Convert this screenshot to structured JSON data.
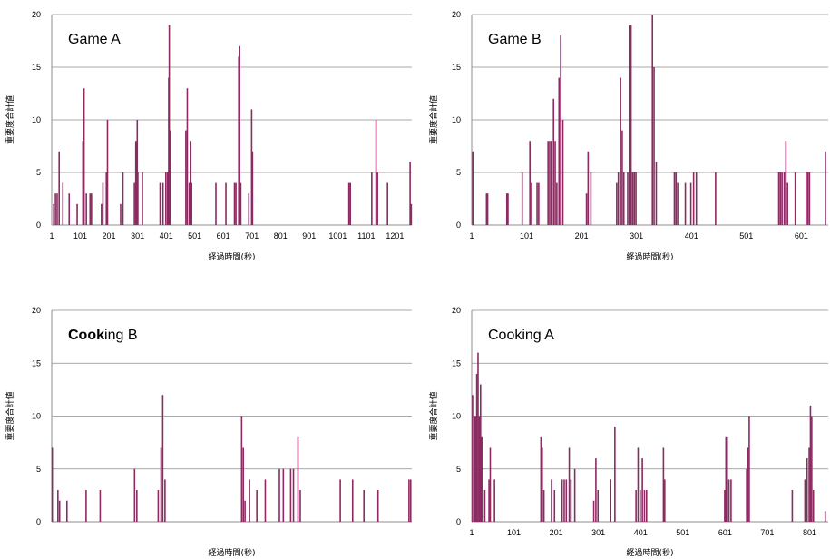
{
  "chart_data": [
    {
      "type": "bar",
      "title": "Game A",
      "xlabel": "経過時間(秒)",
      "ylabel": "重要度合計値",
      "xlim": [
        1,
        1260
      ],
      "ylim": [
        0,
        20
      ],
      "yticks": [
        "0",
        "5",
        "10",
        "15",
        "20"
      ],
      "xticks": [
        {
          "value": 1,
          "label": "1"
        },
        {
          "value": 101,
          "label": "101"
        },
        {
          "value": 201,
          "label": "201"
        },
        {
          "value": 301,
          "label": "301"
        },
        {
          "value": 401,
          "label": "401"
        },
        {
          "value": 501,
          "label": "501"
        },
        {
          "value": 601,
          "label": "601"
        },
        {
          "value": 701,
          "label": "701"
        },
        {
          "value": 801,
          "label": "801"
        },
        {
          "value": 901,
          "label": "901"
        },
        {
          "value": 1001,
          "label": "1001"
        },
        {
          "value": 1101,
          "label": "1101"
        },
        {
          "value": 1201,
          "label": "1201"
        }
      ],
      "grid": true,
      "color": "#8b2b62",
      "bars": [
        {
          "x": 8,
          "y": 2
        },
        {
          "x": 14,
          "y": 3
        },
        {
          "x": 20,
          "y": 3
        },
        {
          "x": 27,
          "y": 7
        },
        {
          "x": 40,
          "y": 4
        },
        {
          "x": 62,
          "y": 3
        },
        {
          "x": 90,
          "y": 2
        },
        {
          "x": 110,
          "y": 8
        },
        {
          "x": 114,
          "y": 13
        },
        {
          "x": 122,
          "y": 3
        },
        {
          "x": 135,
          "y": 3
        },
        {
          "x": 140,
          "y": 3
        },
        {
          "x": 175,
          "y": 2
        },
        {
          "x": 180,
          "y": 4
        },
        {
          "x": 192,
          "y": 5
        },
        {
          "x": 196,
          "y": 10
        },
        {
          "x": 242,
          "y": 2
        },
        {
          "x": 250,
          "y": 5
        },
        {
          "x": 290,
          "y": 4
        },
        {
          "x": 295,
          "y": 8
        },
        {
          "x": 300,
          "y": 10
        },
        {
          "x": 302,
          "y": 5
        },
        {
          "x": 318,
          "y": 5
        },
        {
          "x": 380,
          "y": 4
        },
        {
          "x": 390,
          "y": 4
        },
        {
          "x": 400,
          "y": 5
        },
        {
          "x": 406,
          "y": 5
        },
        {
          "x": 410,
          "y": 14
        },
        {
          "x": 412,
          "y": 19
        },
        {
          "x": 415,
          "y": 9
        },
        {
          "x": 470,
          "y": 9
        },
        {
          "x": 475,
          "y": 13
        },
        {
          "x": 482,
          "y": 4
        },
        {
          "x": 487,
          "y": 8
        },
        {
          "x": 490,
          "y": 4
        },
        {
          "x": 575,
          "y": 4
        },
        {
          "x": 610,
          "y": 4
        },
        {
          "x": 640,
          "y": 4
        },
        {
          "x": 645,
          "y": 4
        },
        {
          "x": 655,
          "y": 16
        },
        {
          "x": 658,
          "y": 17
        },
        {
          "x": 662,
          "y": 4
        },
        {
          "x": 690,
          "y": 3
        },
        {
          "x": 700,
          "y": 11
        },
        {
          "x": 703,
          "y": 7
        },
        {
          "x": 1040,
          "y": 4
        },
        {
          "x": 1045,
          "y": 4
        },
        {
          "x": 1120,
          "y": 5
        },
        {
          "x": 1135,
          "y": 10
        },
        {
          "x": 1140,
          "y": 5
        },
        {
          "x": 1175,
          "y": 4
        },
        {
          "x": 1254,
          "y": 6
        },
        {
          "x": 1258,
          "y": 2
        }
      ]
    },
    {
      "type": "bar",
      "title": "Game B",
      "xlabel": "経過時間(秒)",
      "ylabel": "重要度合計値",
      "xlim": [
        1,
        650
      ],
      "ylim": [
        0,
        20
      ],
      "yticks": [
        "0",
        "5",
        "10",
        "15",
        "20"
      ],
      "xticks": [
        {
          "value": 1,
          "label": "1"
        },
        {
          "value": 101,
          "label": "101"
        },
        {
          "value": 201,
          "label": "201"
        },
        {
          "value": 301,
          "label": "301"
        },
        {
          "value": 401,
          "label": "401"
        },
        {
          "value": 501,
          "label": "501"
        },
        {
          "value": 601,
          "label": "601"
        }
      ],
      "grid": true,
      "color": "#8b2b62",
      "bars": [
        {
          "x": 3,
          "y": 7
        },
        {
          "x": 28,
          "y": 3
        },
        {
          "x": 30,
          "y": 3
        },
        {
          "x": 65,
          "y": 3
        },
        {
          "x": 67,
          "y": 3
        },
        {
          "x": 93,
          "y": 5
        },
        {
          "x": 107,
          "y": 8
        },
        {
          "x": 110,
          "y": 4
        },
        {
          "x": 120,
          "y": 4
        },
        {
          "x": 123,
          "y": 4
        },
        {
          "x": 140,
          "y": 8
        },
        {
          "x": 143,
          "y": 8
        },
        {
          "x": 146,
          "y": 8
        },
        {
          "x": 150,
          "y": 12
        },
        {
          "x": 153,
          "y": 8
        },
        {
          "x": 156,
          "y": 4
        },
        {
          "x": 160,
          "y": 14
        },
        {
          "x": 163,
          "y": 18
        },
        {
          "x": 167,
          "y": 10
        },
        {
          "x": 210,
          "y": 3
        },
        {
          "x": 213,
          "y": 7
        },
        {
          "x": 218,
          "y": 5
        },
        {
          "x": 265,
          "y": 4
        },
        {
          "x": 268,
          "y": 5
        },
        {
          "x": 272,
          "y": 14
        },
        {
          "x": 275,
          "y": 9
        },
        {
          "x": 278,
          "y": 5
        },
        {
          "x": 285,
          "y": 5
        },
        {
          "x": 288,
          "y": 19
        },
        {
          "x": 291,
          "y": 19
        },
        {
          "x": 294,
          "y": 5
        },
        {
          "x": 297,
          "y": 5
        },
        {
          "x": 300,
          "y": 5
        },
        {
          "x": 330,
          "y": 20
        },
        {
          "x": 333,
          "y": 15
        },
        {
          "x": 337,
          "y": 6
        },
        {
          "x": 370,
          "y": 5
        },
        {
          "x": 373,
          "y": 5
        },
        {
          "x": 376,
          "y": 4
        },
        {
          "x": 390,
          "y": 4
        },
        {
          "x": 400,
          "y": 4
        },
        {
          "x": 405,
          "y": 5
        },
        {
          "x": 410,
          "y": 5
        },
        {
          "x": 445,
          "y": 5
        },
        {
          "x": 560,
          "y": 5
        },
        {
          "x": 563,
          "y": 5
        },
        {
          "x": 566,
          "y": 5
        },
        {
          "x": 570,
          "y": 5
        },
        {
          "x": 573,
          "y": 8
        },
        {
          "x": 576,
          "y": 4
        },
        {
          "x": 590,
          "y": 5
        },
        {
          "x": 610,
          "y": 5
        },
        {
          "x": 613,
          "y": 5
        },
        {
          "x": 616,
          "y": 5
        },
        {
          "x": 645,
          "y": 7
        }
      ]
    },
    {
      "type": "bar",
      "title_parts": [
        {
          "text": "Coo",
          "bold": true
        },
        {
          "text": "k",
          "bold": true
        },
        {
          "text": "ing B",
          "bold": false
        }
      ],
      "xlabel": "経過時間(秒)",
      "ylabel": "重要度合計値",
      "xlim": [
        1,
        640
      ],
      "ylim": [
        0,
        20
      ],
      "yticks": [
        "0",
        "5",
        "10",
        "15",
        "20"
      ],
      "xticks": [],
      "grid": true,
      "color": "#8b2b62",
      "bars": [
        {
          "x": 2,
          "y": 7
        },
        {
          "x": 12,
          "y": 3
        },
        {
          "x": 15,
          "y": 2
        },
        {
          "x": 28,
          "y": 2
        },
        {
          "x": 62,
          "y": 3
        },
        {
          "x": 87,
          "y": 3
        },
        {
          "x": 148,
          "y": 5
        },
        {
          "x": 152,
          "y": 3
        },
        {
          "x": 190,
          "y": 3
        },
        {
          "x": 195,
          "y": 7
        },
        {
          "x": 198,
          "y": 12
        },
        {
          "x": 202,
          "y": 4
        },
        {
          "x": 338,
          "y": 10
        },
        {
          "x": 341,
          "y": 7
        },
        {
          "x": 344,
          "y": 2
        },
        {
          "x": 352,
          "y": 4
        },
        {
          "x": 365,
          "y": 3
        },
        {
          "x": 380,
          "y": 4
        },
        {
          "x": 405,
          "y": 5
        },
        {
          "x": 412,
          "y": 5
        },
        {
          "x": 425,
          "y": 5
        },
        {
          "x": 430,
          "y": 5
        },
        {
          "x": 438,
          "y": 8
        },
        {
          "x": 442,
          "y": 3
        },
        {
          "x": 513,
          "y": 4
        },
        {
          "x": 535,
          "y": 4
        },
        {
          "x": 555,
          "y": 3
        },
        {
          "x": 580,
          "y": 3
        },
        {
          "x": 635,
          "y": 4
        },
        {
          "x": 638,
          "y": 4
        }
      ]
    },
    {
      "type": "bar",
      "title": "Cooking A",
      "xlabel": "経過時間(秒)",
      "ylabel": "重要度合計値",
      "xlim": [
        1,
        845
      ],
      "ylim": [
        0,
        20
      ],
      "yticks": [
        "0",
        "5",
        "10",
        "15",
        "20"
      ],
      "xticks": [
        {
          "value": 1,
          "label": "1"
        },
        {
          "value": 101,
          "label": "101"
        },
        {
          "value": 201,
          "label": "201"
        },
        {
          "value": 301,
          "label": "301"
        },
        {
          "value": 401,
          "label": "401"
        },
        {
          "value": 501,
          "label": "501"
        },
        {
          "value": 601,
          "label": "601"
        },
        {
          "value": 701,
          "label": "701"
        },
        {
          "value": 801,
          "label": "801"
        }
      ],
      "grid": true,
      "color": "#8b2b62",
      "bars": [
        {
          "x": 3,
          "y": 12
        },
        {
          "x": 7,
          "y": 10
        },
        {
          "x": 10,
          "y": 10
        },
        {
          "x": 13,
          "y": 14
        },
        {
          "x": 16,
          "y": 16
        },
        {
          "x": 19,
          "y": 10
        },
        {
          "x": 22,
          "y": 13
        },
        {
          "x": 25,
          "y": 8
        },
        {
          "x": 32,
          "y": 3
        },
        {
          "x": 42,
          "y": 4
        },
        {
          "x": 45,
          "y": 7
        },
        {
          "x": 55,
          "y": 4
        },
        {
          "x": 165,
          "y": 8
        },
        {
          "x": 168,
          "y": 7
        },
        {
          "x": 172,
          "y": 3
        },
        {
          "x": 190,
          "y": 4
        },
        {
          "x": 197,
          "y": 3
        },
        {
          "x": 215,
          "y": 4
        },
        {
          "x": 220,
          "y": 4
        },
        {
          "x": 225,
          "y": 4
        },
        {
          "x": 232,
          "y": 7
        },
        {
          "x": 236,
          "y": 4
        },
        {
          "x": 245,
          "y": 5
        },
        {
          "x": 290,
          "y": 2
        },
        {
          "x": 295,
          "y": 6
        },
        {
          "x": 300,
          "y": 3
        },
        {
          "x": 330,
          "y": 4
        },
        {
          "x": 340,
          "y": 9
        },
        {
          "x": 390,
          "y": 3
        },
        {
          "x": 395,
          "y": 7
        },
        {
          "x": 400,
          "y": 3
        },
        {
          "x": 405,
          "y": 6
        },
        {
          "x": 410,
          "y": 3
        },
        {
          "x": 415,
          "y": 3
        },
        {
          "x": 455,
          "y": 7
        },
        {
          "x": 458,
          "y": 4
        },
        {
          "x": 600,
          "y": 3
        },
        {
          "x": 603,
          "y": 8
        },
        {
          "x": 606,
          "y": 8
        },
        {
          "x": 610,
          "y": 4
        },
        {
          "x": 615,
          "y": 4
        },
        {
          "x": 652,
          "y": 5
        },
        {
          "x": 655,
          "y": 7
        },
        {
          "x": 658,
          "y": 10
        },
        {
          "x": 760,
          "y": 3
        },
        {
          "x": 790,
          "y": 4
        },
        {
          "x": 795,
          "y": 6
        },
        {
          "x": 800,
          "y": 7
        },
        {
          "x": 803,
          "y": 11
        },
        {
          "x": 806,
          "y": 10
        },
        {
          "x": 810,
          "y": 3
        },
        {
          "x": 838,
          "y": 1
        }
      ]
    }
  ]
}
